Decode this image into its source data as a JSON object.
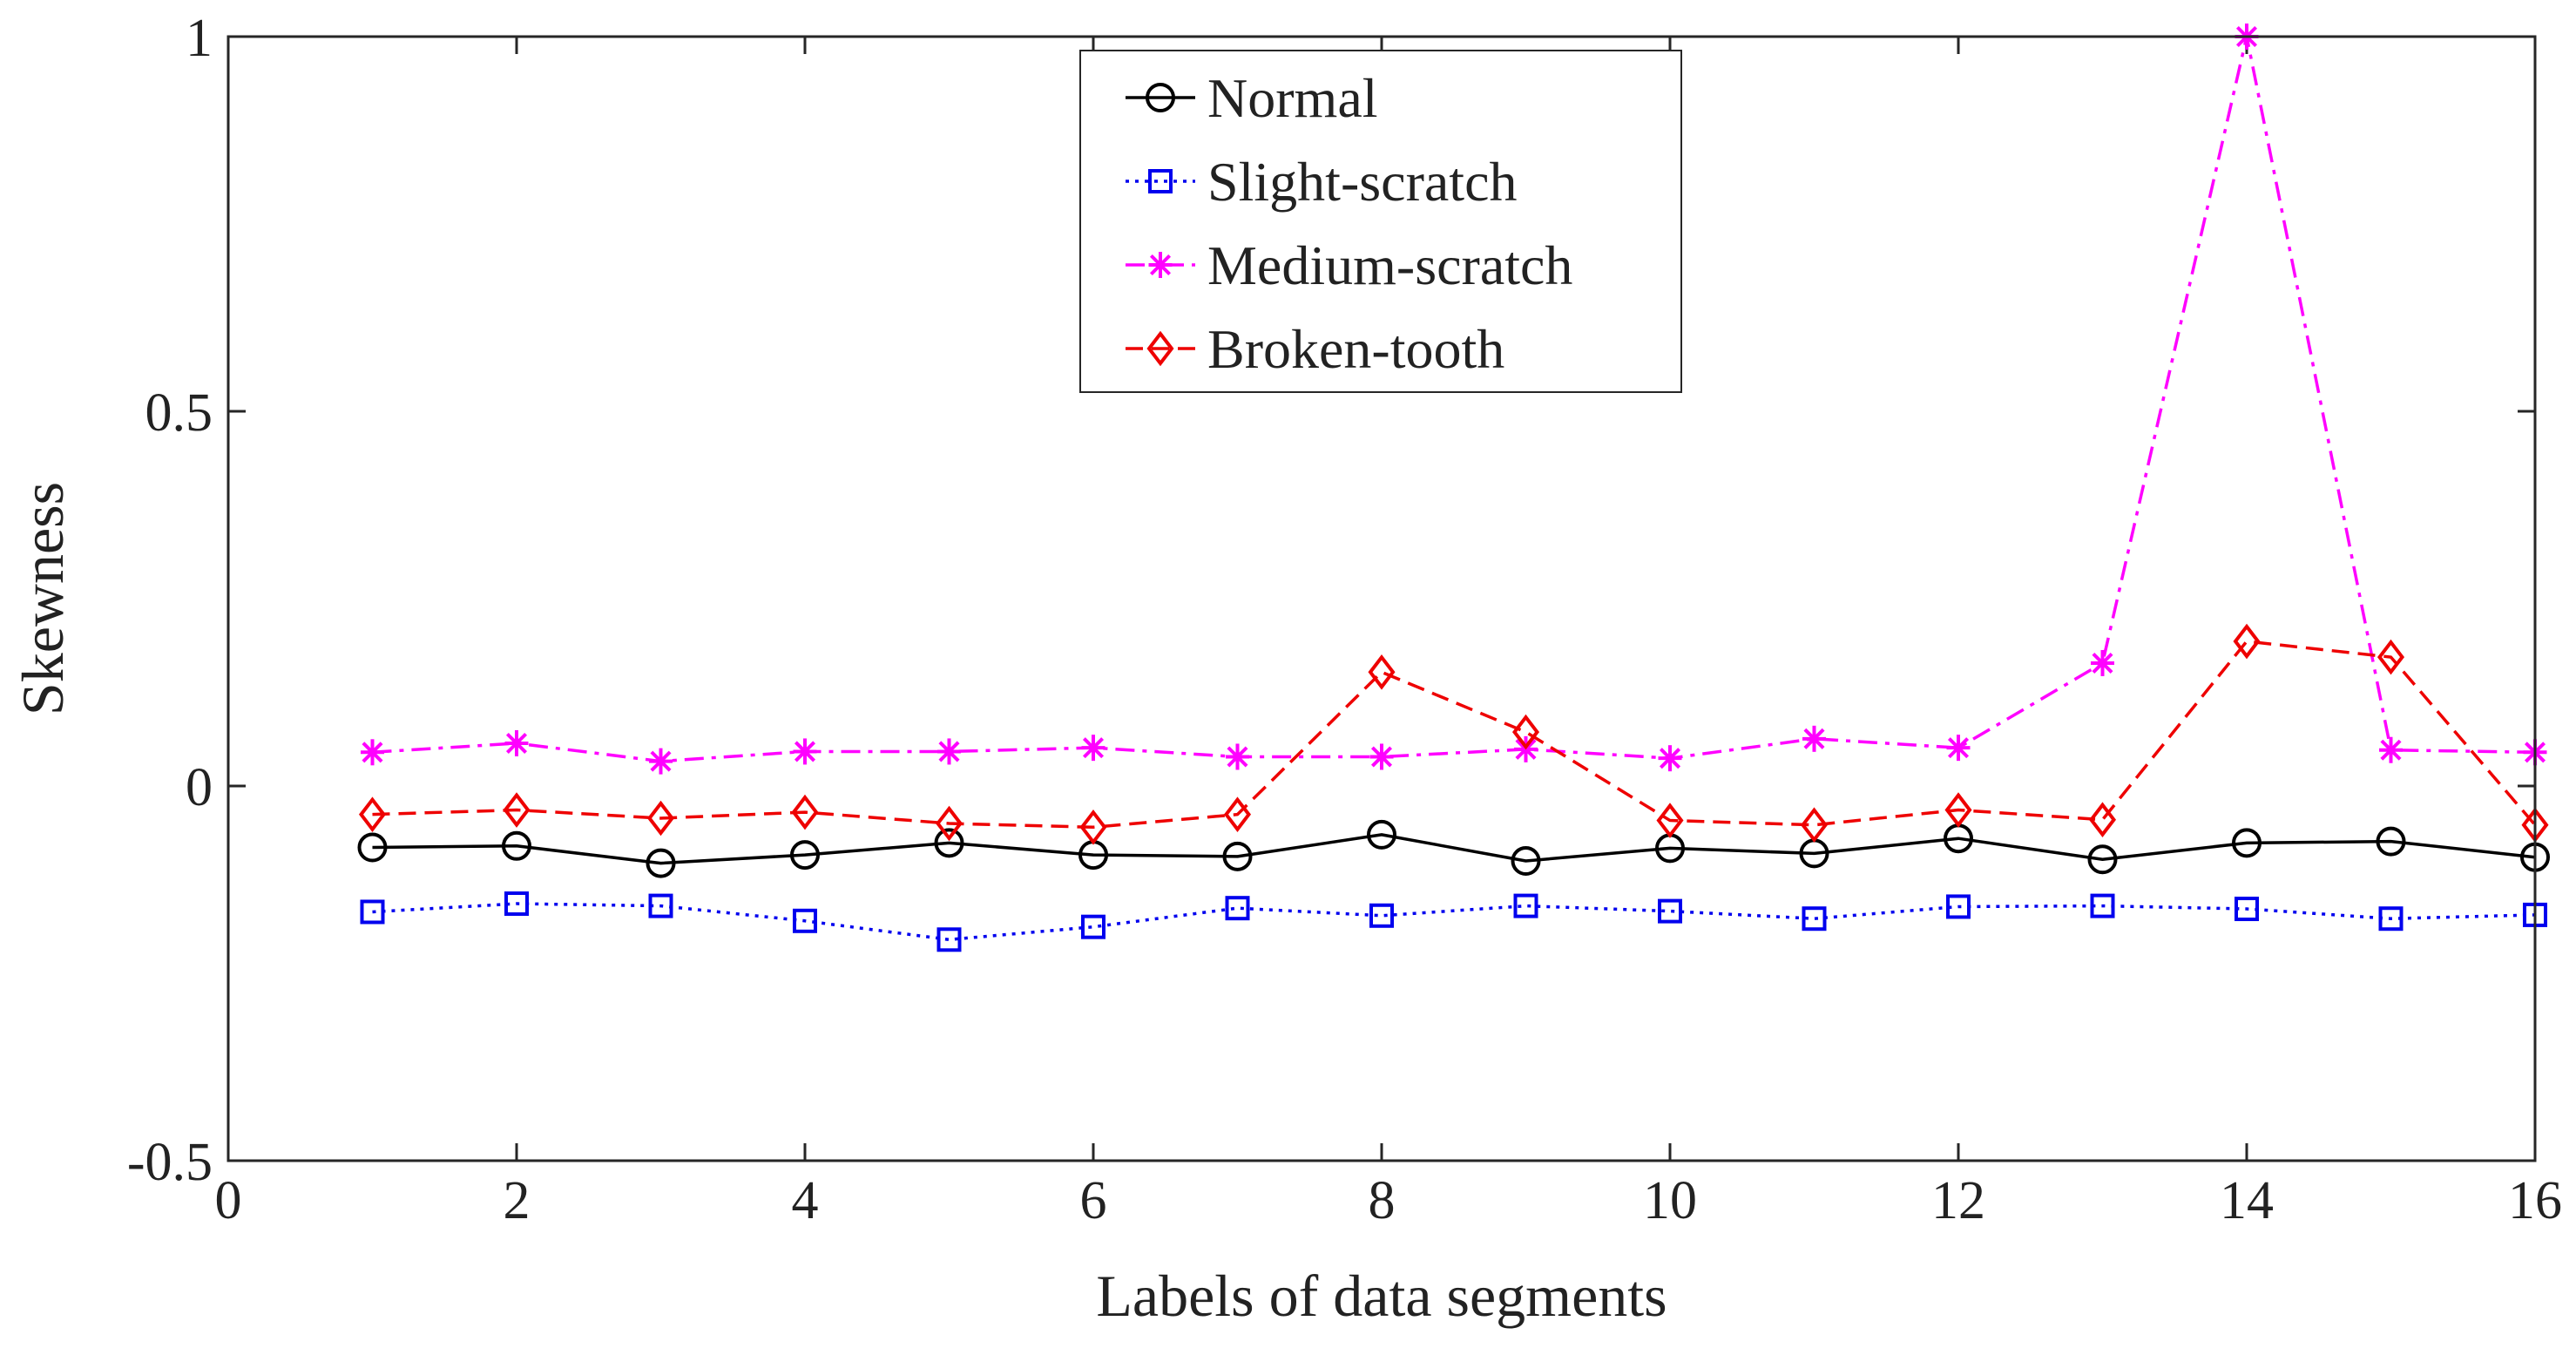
{
  "chart_data": {
    "type": "line",
    "title": "",
    "xlabel": "Labels of data segments",
    "ylabel": "Skewness",
    "xlim": [
      0,
      16
    ],
    "ylim": [
      -0.5,
      1
    ],
    "x_ticks": [
      0,
      2,
      4,
      6,
      8,
      10,
      12,
      14,
      16
    ],
    "x_tick_labels": [
      "0",
      "2",
      "4",
      "6",
      "8",
      "10",
      "12",
      "14",
      "16"
    ],
    "y_ticks": [
      -0.5,
      0,
      0.5,
      1
    ],
    "y_tick_labels": [
      "-0.5",
      "0",
      "0.5",
      "1"
    ],
    "grid": false,
    "legend_position": "top-center",
    "x": [
      1,
      2,
      3,
      4,
      5,
      6,
      7,
      8,
      9,
      10,
      11,
      12,
      13,
      14,
      15,
      16
    ],
    "series": [
      {
        "name": "Normal",
        "color": "#000000",
        "line_style": "solid",
        "marker": "circle",
        "values": [
          -0.082,
          -0.08,
          -0.103,
          -0.092,
          -0.076,
          -0.092,
          -0.094,
          -0.065,
          -0.1,
          -0.083,
          -0.09,
          -0.07,
          -0.098,
          -0.076,
          -0.074,
          -0.095
        ]
      },
      {
        "name": "Slight-scratch",
        "color": "#0000ee",
        "line_style": "dotted",
        "marker": "square",
        "values": [
          -0.168,
          -0.157,
          -0.16,
          -0.18,
          -0.205,
          -0.188,
          -0.163,
          -0.173,
          -0.16,
          -0.167,
          -0.177,
          -0.161,
          -0.16,
          -0.164,
          -0.177,
          -0.172
        ]
      },
      {
        "name": "Medium-scratch",
        "color": "#ff00ff",
        "line_style": "dashdot",
        "marker": "asterisk",
        "values": [
          0.045,
          0.057,
          0.033,
          0.046,
          0.046,
          0.051,
          0.039,
          0.039,
          0.049,
          0.037,
          0.063,
          0.051,
          0.164,
          1.0,
          0.048,
          0.045
        ]
      },
      {
        "name": "Broken-tooth",
        "color": "#ee0000",
        "line_style": "dashed",
        "marker": "diamond",
        "values": [
          -0.038,
          -0.032,
          -0.043,
          -0.035,
          -0.05,
          -0.055,
          -0.038,
          0.152,
          0.072,
          -0.046,
          -0.052,
          -0.032,
          -0.045,
          0.193,
          0.172,
          -0.052
        ]
      }
    ]
  }
}
